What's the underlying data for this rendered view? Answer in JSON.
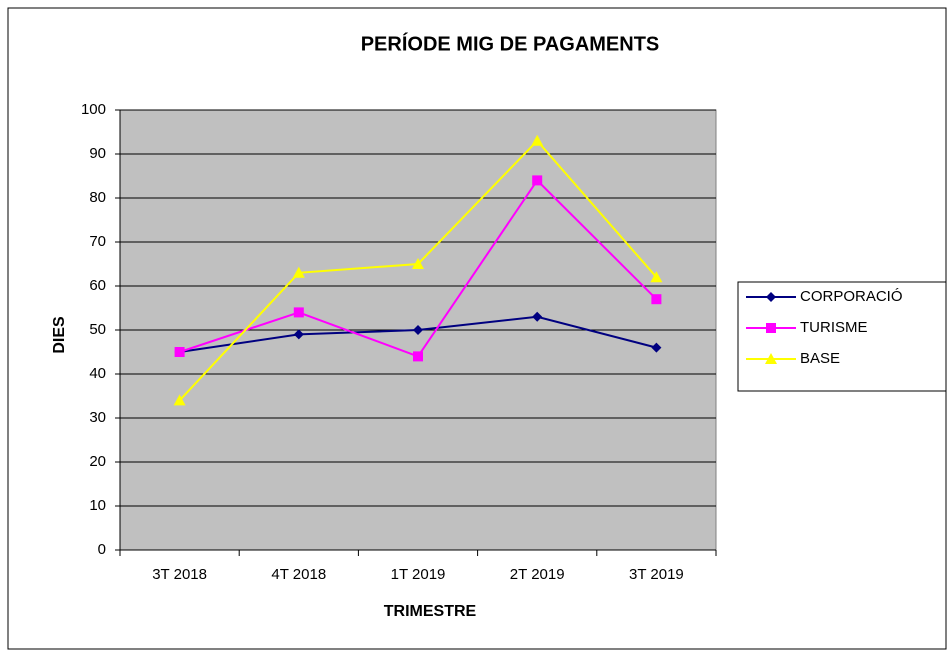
{
  "chart_data": {
    "type": "line",
    "title": "PERÍODE MIG DE PAGAMENTS",
    "x_label": "TRIMESTRE",
    "y_label": "DIES",
    "categories": [
      "3T 2018",
      "4T 2018",
      "1T 2019",
      "2T 2019",
      "3T 2019"
    ],
    "series": [
      {
        "name": "CORPORACIÓ",
        "color": "#000080",
        "marker": "diamond",
        "values": [
          45,
          49,
          50,
          53,
          46
        ]
      },
      {
        "name": "TURISME",
        "color": "#ff00ff",
        "marker": "square",
        "values": [
          45,
          54,
          44,
          84,
          57
        ]
      },
      {
        "name": "BASE",
        "color": "#ffff00",
        "marker": "triangle",
        "values": [
          34,
          63,
          65,
          93,
          62
        ]
      }
    ],
    "ylim": [
      0,
      100
    ],
    "yticks": [
      0,
      10,
      20,
      30,
      40,
      50,
      60,
      70,
      80,
      90,
      100
    ],
    "grid": true,
    "legend": "right"
  }
}
